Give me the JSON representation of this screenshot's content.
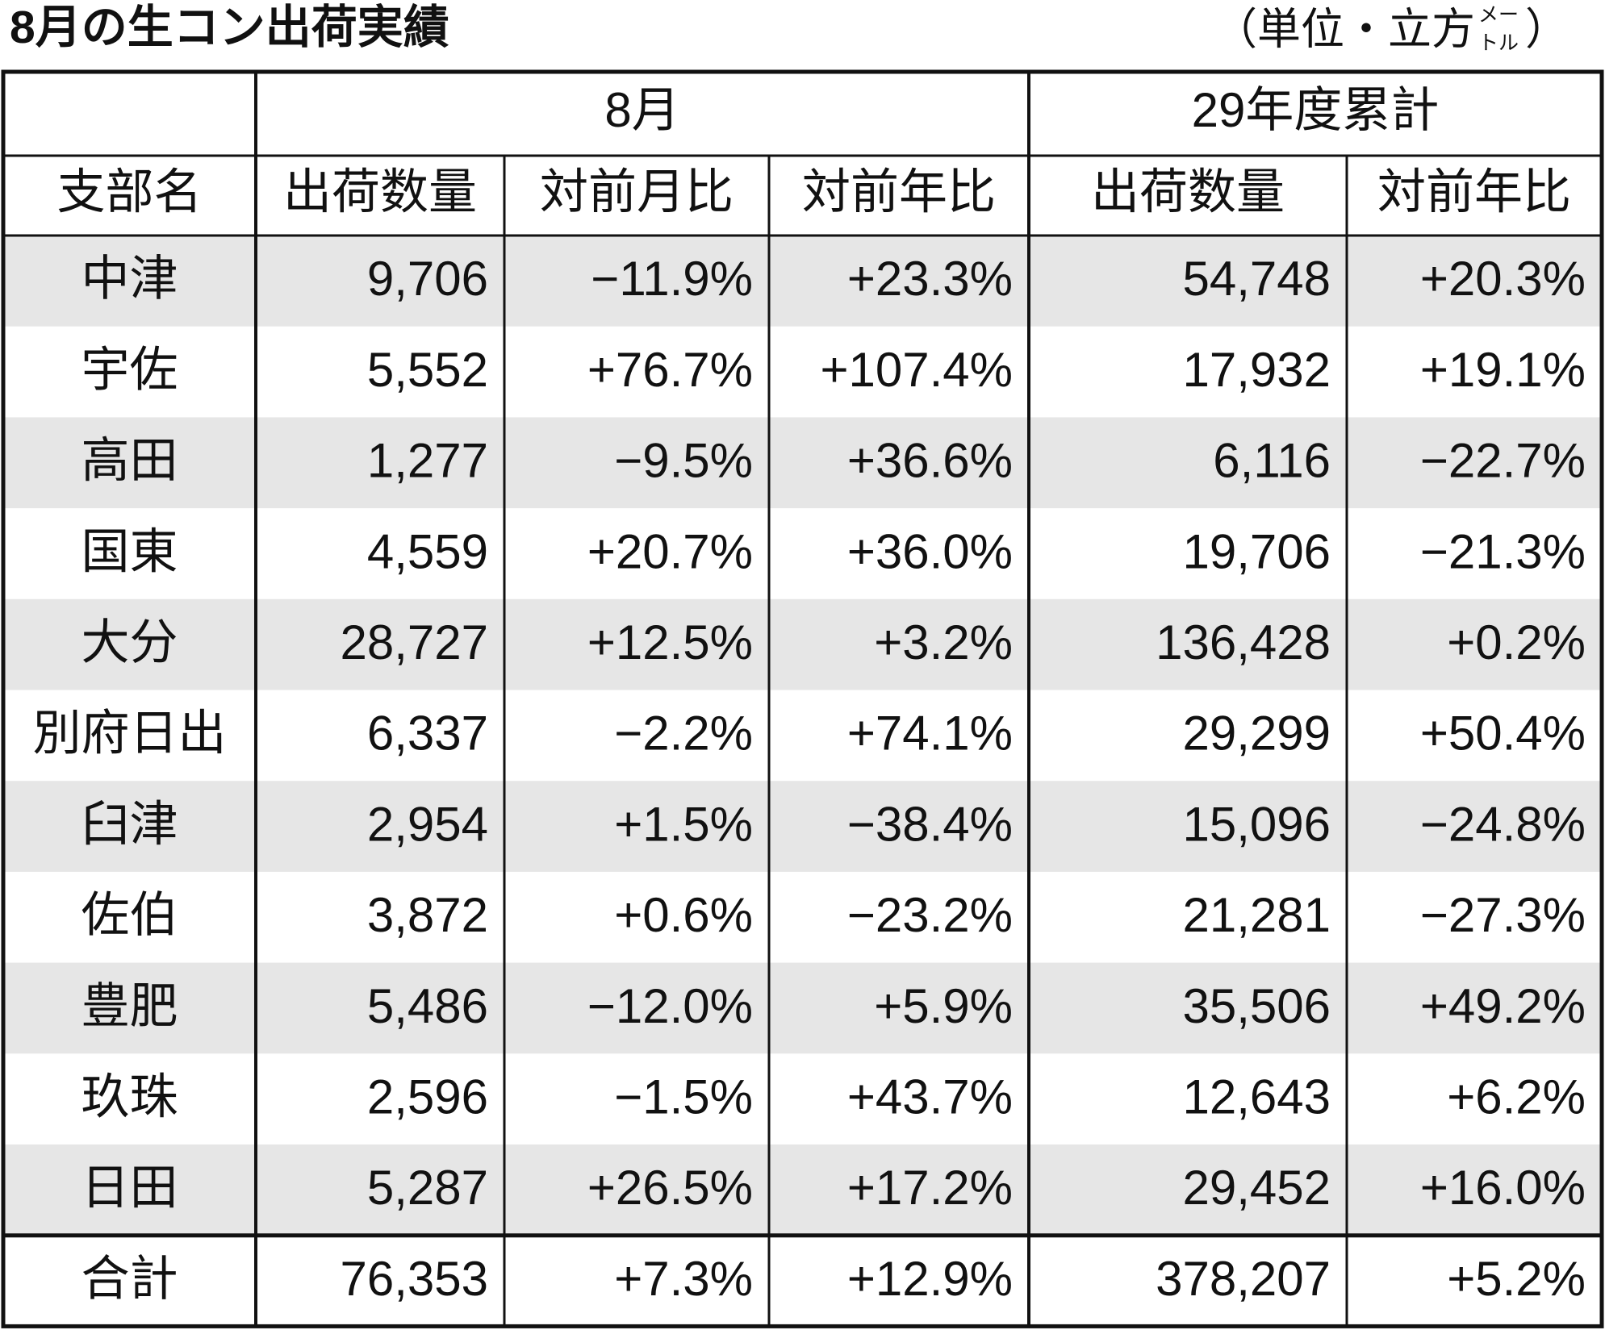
{
  "header": {
    "title": "8月の生コン出荷実績",
    "unit_prefix": "（単位・立方",
    "unit_small": [
      "メー",
      "トル"
    ],
    "unit_suffix": "）"
  },
  "table": {
    "group_headers": [
      "8月",
      "29年度累計"
    ],
    "columns": [
      "支部名",
      "出荷数量",
      "対前月比",
      "対前年比",
      "出荷数量",
      "対前年比"
    ],
    "rows": [
      [
        "中津",
        "9,706",
        "−11.9%",
        "+23.3%",
        "54,748",
        "+20.3%"
      ],
      [
        "宇佐",
        "5,552",
        "+76.7%",
        "+107.4%",
        "17,932",
        "+19.1%"
      ],
      [
        "高田",
        "1,277",
        "−9.5%",
        "+36.6%",
        "6,116",
        "−22.7%"
      ],
      [
        "国東",
        "4,559",
        "+20.7%",
        "+36.0%",
        "19,706",
        "−21.3%"
      ],
      [
        "大分",
        "28,727",
        "+12.5%",
        "+3.2%",
        "136,428",
        "+0.2%"
      ],
      [
        "別府日出",
        "6,337",
        "−2.2%",
        "+74.1%",
        "29,299",
        "+50.4%"
      ],
      [
        "臼津",
        "2,954",
        "+1.5%",
        "−38.4%",
        "15,096",
        "−24.8%"
      ],
      [
        "佐伯",
        "3,872",
        "+0.6%",
        "−23.2%",
        "21,281",
        "−27.3%"
      ],
      [
        "豊肥",
        "5,486",
        "−12.0%",
        "+5.9%",
        "35,506",
        "+49.2%"
      ],
      [
        "玖珠",
        "2,596",
        "−1.5%",
        "+43.7%",
        "12,643",
        "+6.2%"
      ],
      [
        "日田",
        "5,287",
        "+26.5%",
        "+17.2%",
        "29,452",
        "+16.0%"
      ]
    ],
    "total": [
      "合計",
      "76,353",
      "+7.3%",
      "+12.9%",
      "378,207",
      "+5.2%"
    ]
  }
}
